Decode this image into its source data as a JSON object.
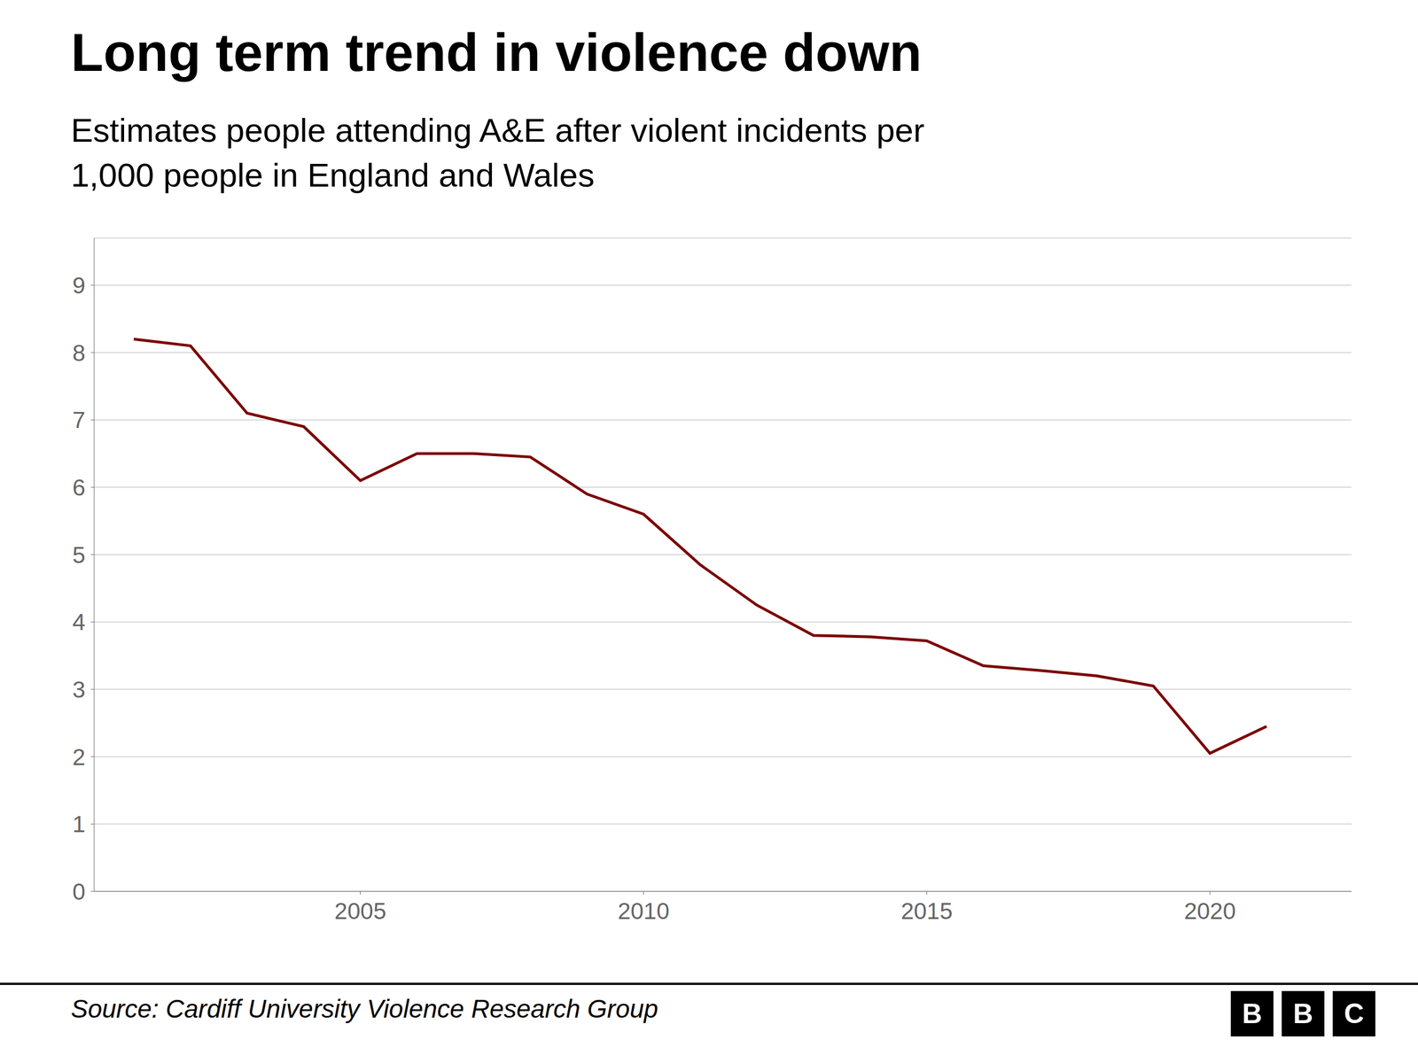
{
  "chart_data": {
    "type": "line",
    "title": "Long term trend in violence down",
    "subtitle": "Estimates people attending A&E after violent incidents per\n1,000 people in England and Wales",
    "source": "Source: Cardiff University Violence Research Group",
    "logo": "BBC",
    "x": [
      2001,
      2002,
      2003,
      2004,
      2005,
      2006,
      2007,
      2008,
      2009,
      2010,
      2011,
      2012,
      2013,
      2014,
      2015,
      2016,
      2017,
      2018,
      2019,
      2020,
      2021
    ],
    "values": [
      8.2,
      8.1,
      7.1,
      6.9,
      6.1,
      6.5,
      6.5,
      6.45,
      5.9,
      5.6,
      4.85,
      4.25,
      3.8,
      3.78,
      3.72,
      3.35,
      3.28,
      3.2,
      3.05,
      2.05,
      2.45
    ],
    "color": "#7B0000",
    "xlim": [
      2000.3,
      2022.5
    ],
    "xticks": [
      2005,
      2010,
      2015,
      2020
    ],
    "ylim": [
      0,
      9.7
    ],
    "yticks": [
      0,
      1,
      2,
      3,
      4,
      5,
      6,
      7,
      8,
      9
    ],
    "grid": true
  }
}
